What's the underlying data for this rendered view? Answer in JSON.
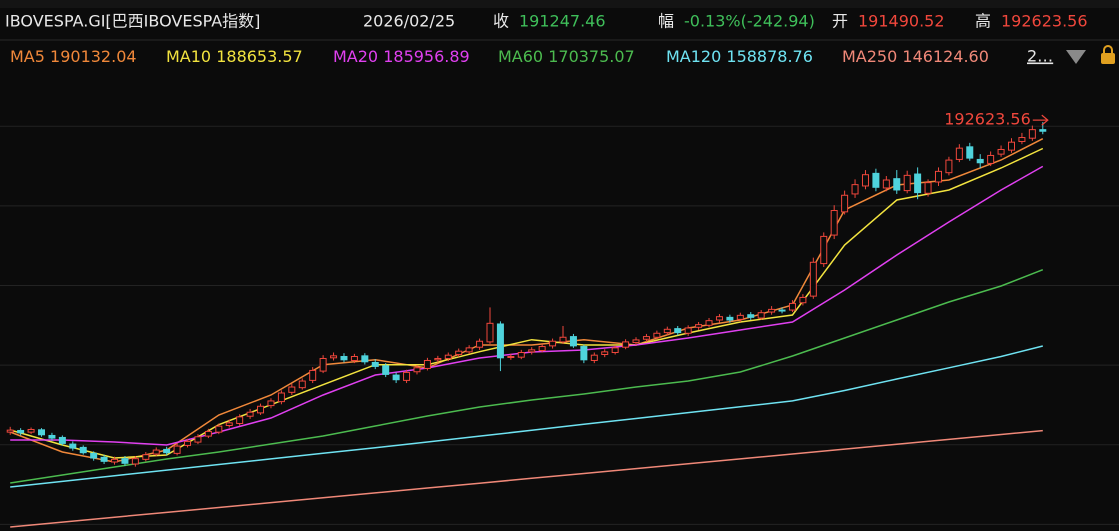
{
  "header": {
    "symbol": "IBOVESPA.GI[巴西IBOVESPA指数]",
    "date": "2026/02/25",
    "close_label": "收",
    "close": "191247.46",
    "change_label": "幅",
    "change": "-0.13%(-242.94)",
    "open_label": "开",
    "open": "191490.52",
    "high_label": "高",
    "high": "192623.56",
    "more": "2…"
  },
  "chart_data": {
    "type": "candlestick",
    "xlim": [
      -0.5,
      99.5
    ],
    "ylim": [
      131000,
      205000
    ],
    "yticks": [
      132000,
      144000,
      156000,
      168000,
      180000,
      192000
    ],
    "grid": true,
    "up_color": "#f0473c",
    "down_color": "#4fd3dc",
    "open": [
      145900,
      146150,
      145900,
      146250,
      145400,
      145100,
      144100,
      143600,
      142700,
      142100,
      141400,
      141900,
      141100,
      141800,
      142600,
      143300,
      142700,
      143900,
      144400,
      145300,
      145900,
      146900,
      147200,
      148300,
      148800,
      149900,
      150500,
      151900,
      152600,
      153700,
      155100,
      157100,
      157300,
      156700,
      157400,
      156400,
      155900,
      154500,
      153700,
      155000,
      155500,
      156800,
      157000,
      157600,
      158000,
      158700,
      159500,
      162200,
      157200,
      157200,
      158000,
      158200,
      158900,
      159500,
      160300,
      158800,
      156700,
      157600,
      157900,
      158700,
      159400,
      159900,
      160200,
      160900,
      161500,
      160800,
      161700,
      162000,
      162800,
      163200,
      162900,
      163600,
      163100,
      164000,
      164300,
      164300,
      165400,
      166400,
      171300,
      175600,
      179100,
      181800,
      183000,
      184900,
      182700,
      184100,
      182300,
      184800,
      181900,
      183600,
      185000,
      187000,
      188900,
      187000,
      186400,
      187800,
      188400,
      189700,
      190200,
      191490.52
    ],
    "high": [
      146700,
      146500,
      146600,
      146500,
      145800,
      145400,
      144500,
      143900,
      143000,
      142500,
      142200,
      142300,
      142300,
      142900,
      143600,
      143700,
      144200,
      144900,
      145600,
      146400,
      147200,
      147800,
      148600,
      149400,
      150200,
      151000,
      152200,
      153200,
      154000,
      155700,
      157500,
      157900,
      157800,
      157700,
      157800,
      156900,
      156300,
      154900,
      155300,
      156000,
      157100,
      157400,
      157900,
      158500,
      159000,
      160000,
      164700,
      162600,
      157700,
      158300,
      158700,
      159200,
      160000,
      161900,
      160700,
      159100,
      157900,
      158400,
      159000,
      159900,
      160200,
      160700,
      161200,
      161800,
      161900,
      162000,
      162500,
      163100,
      163700,
      163600,
      163900,
      164000,
      164300,
      164900,
      164700,
      165800,
      166700,
      172200,
      176000,
      180100,
      182300,
      184000,
      185400,
      185600,
      184500,
      185400,
      185300,
      185800,
      184000,
      185800,
      187400,
      189300,
      189500,
      187800,
      188200,
      189100,
      190200,
      191000,
      192100,
      192623.56
    ],
    "low": [
      145500,
      145400,
      145600,
      145200,
      144600,
      143900,
      143100,
      142500,
      141600,
      141100,
      141000,
      140800,
      140700,
      141500,
      142300,
      142400,
      142400,
      143600,
      144100,
      145000,
      145600,
      146600,
      146900,
      147900,
      148500,
      149500,
      150100,
      151500,
      152300,
      153300,
      154800,
      156700,
      156400,
      156300,
      156100,
      155400,
      154200,
      153300,
      153300,
      154600,
      155200,
      156400,
      156600,
      157200,
      157700,
      158300,
      159200,
      155100,
      156800,
      156900,
      157600,
      157900,
      158500,
      159200,
      158600,
      156300,
      156300,
      157200,
      157600,
      158400,
      159000,
      159500,
      159900,
      160500,
      160500,
      160400,
      161300,
      161700,
      162400,
      162400,
      162500,
      162800,
      162800,
      163600,
      163800,
      164000,
      165000,
      166000,
      170800,
      175000,
      178700,
      181200,
      182500,
      182200,
      182200,
      181800,
      181900,
      181000,
      181400,
      183000,
      184600,
      186600,
      186800,
      185700,
      186000,
      187400,
      188000,
      189300,
      189800,
      190800
    ],
    "close": [
      146200,
      145800,
      146300,
      145500,
      145000,
      144200,
      143500,
      142800,
      142000,
      141500,
      141800,
      141200,
      141900,
      142500,
      143200,
      142800,
      143800,
      144500,
      145200,
      146000,
      146800,
      147300,
      148200,
      148900,
      149800,
      150600,
      151800,
      152700,
      153600,
      155200,
      157000,
      157400,
      156800,
      157300,
      156500,
      155800,
      154600,
      153800,
      154900,
      155600,
      156700,
      157000,
      157500,
      158100,
      158600,
      159600,
      162300,
      157100,
      157300,
      157900,
      158300,
      158800,
      159600,
      160200,
      158900,
      156800,
      157500,
      158000,
      158600,
      159500,
      159800,
      160300,
      160800,
      161400,
      160900,
      161600,
      162100,
      162700,
      163300,
      162800,
      163500,
      163200,
      163900,
      164400,
      164200,
      165300,
      166200,
      171500,
      175400,
      179300,
      181600,
      183200,
      184700,
      182800,
      183900,
      182400,
      184600,
      182000,
      183500,
      185200,
      186900,
      188700,
      187200,
      186500,
      187600,
      188500,
      189600,
      190300,
      191489,
      191247.46
    ],
    "ma_x": [
      0,
      5,
      10,
      15,
      20,
      25,
      30,
      35,
      40,
      45,
      50,
      55,
      60,
      65,
      70,
      75,
      80,
      85,
      90,
      95,
      99
    ],
    "series": [
      {
        "name": "MA5",
        "color": "#f0883a",
        "last_label": "190132.04",
        "values": [
          145926,
          142912,
          141405,
          143213,
          148488,
          151502,
          156063,
          156816,
          155570,
          159036,
          159036,
          159830,
          159036,
          161599,
          162804,
          165064,
          179381,
          183148,
          183902,
          186916,
          190132.04
        ]
      },
      {
        "name": "MA10",
        "color": "#f2e33f",
        "last_label": "188653.57",
        "values": [
          146227,
          143967,
          142008,
          142460,
          147021,
          150035,
          153049,
          156063,
          156063,
          158022,
          159830,
          159036,
          159036,
          160844,
          162503,
          163557,
          174108,
          180890,
          182396,
          185711,
          188653.57
        ]
      },
      {
        "name": "MA20",
        "color": "#e040f0",
        "last_label": "185956.89",
        "values": [
          144720,
          144720,
          144419,
          143967,
          145926,
          148035,
          151502,
          154516,
          155570,
          157077,
          157982,
          158283,
          159036,
          160091,
          161297,
          162503,
          167325,
          172600,
          177573,
          182396,
          185956.89
        ]
      },
      {
        "name": "MA60",
        "color": "#4cbb4f",
        "last_label": "170375.07",
        "values": [
          138240,
          139445,
          140651,
          141857,
          142912,
          144117,
          145323,
          146830,
          148337,
          149693,
          150748,
          151652,
          152707,
          153611,
          154967,
          157379,
          160091,
          162804,
          165517,
          167928,
          170375.07
        ]
      },
      {
        "name": "MA120",
        "color": "#6fe3f2",
        "last_label": "158878.76",
        "values": [
          137637,
          138481,
          139340,
          140184,
          141028,
          141871,
          142715,
          143559,
          144419,
          145308,
          146182,
          147086,
          147960,
          148849,
          149723,
          150612,
          152180,
          153913,
          155601,
          157303,
          158878.76
        ]
      },
      {
        "name": "MA250",
        "color": "#f08878",
        "last_label": "146124.60",
        "values": [
          131610,
          132343,
          133076,
          133809,
          134542,
          135275,
          136008,
          136741,
          137474,
          138207,
          138940,
          139673,
          140406,
          141139,
          141872,
          142605,
          143338,
          144071,
          144804,
          145537,
          146124.6
        ]
      }
    ]
  }
}
